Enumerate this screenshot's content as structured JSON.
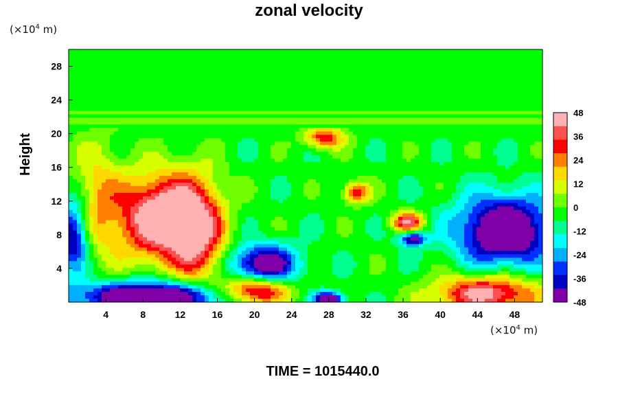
{
  "chart_data": {
    "type": "heatmap",
    "title": "zonal velocity",
    "ylabel": "Height",
    "xunit": "(×10⁴ m)",
    "yunit": "(×10⁴ m)",
    "caption": "TIME = 1015440.0",
    "xlim": [
      0,
      51
    ],
    "ylim": [
      0,
      30
    ],
    "x_ticks": [
      4,
      8,
      12,
      16,
      20,
      24,
      28,
      32,
      36,
      40,
      44,
      48
    ],
    "y_ticks": [
      4,
      8,
      12,
      16,
      20,
      24,
      28
    ],
    "colorbar": {
      "range": [
        -48,
        48
      ],
      "ticks": [
        48,
        36,
        24,
        12,
        0,
        -12,
        -24,
        -36,
        -48
      ],
      "colors": [
        "#ffb0b0",
        "#ff5050",
        "#ff0000",
        "#ff8000",
        "#ffd800",
        "#d8ff00",
        "#70ff00",
        "#00ff00",
        "#00ff90",
        "#00ffff",
        "#00b0ff",
        "#0030ff",
        "#0000c0",
        "#8000a8"
      ]
    },
    "features": [
      {
        "x": 10,
        "y": 10,
        "value": 48,
        "sx": 3.2,
        "sy": 3.6
      },
      {
        "x": 14,
        "y": 8,
        "value": 30,
        "sx": 2.0,
        "sy": 4.5
      },
      {
        "x": 9,
        "y": 0.6,
        "value": -48,
        "sx": 6,
        "sy": 1.3
      },
      {
        "x": 0.5,
        "y": 8,
        "value": -36,
        "sx": 1.2,
        "sy": 3
      },
      {
        "x": 47,
        "y": 8.5,
        "value": -48,
        "sx": 3.5,
        "sy": 2.8
      },
      {
        "x": 45,
        "y": 1,
        "value": 40,
        "sx": 4,
        "sy": 1.5
      },
      {
        "x": 21,
        "y": 4.5,
        "value": -40,
        "sx": 2.5,
        "sy": 1.6
      },
      {
        "x": 20,
        "y": 1.3,
        "value": 44,
        "sx": 2.5,
        "sy": 1.2
      },
      {
        "x": 27.5,
        "y": 19.5,
        "value": 30,
        "sx": 1.5,
        "sy": 0.9
      },
      {
        "x": 31,
        "y": 13,
        "value": 30,
        "sx": 1.0,
        "sy": 0.9
      },
      {
        "x": 36.5,
        "y": 9.5,
        "value": 36,
        "sx": 1.2,
        "sy": 0.8
      },
      {
        "x": 37,
        "y": 7.5,
        "value": -36,
        "sx": 1.0,
        "sy": 0.6
      },
      {
        "x": 28,
        "y": 0.3,
        "value": -48,
        "sx": 1,
        "sy": 0.6
      },
      {
        "x": 3,
        "y": 12,
        "value": 18,
        "sx": 2,
        "sy": 5
      }
    ]
  }
}
